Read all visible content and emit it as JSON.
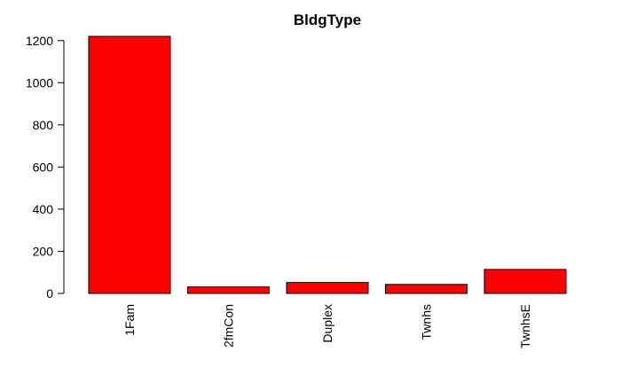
{
  "chart_data": {
    "type": "bar",
    "title": "BldgType",
    "xlabel": "",
    "ylabel": "",
    "categories": [
      "1Fam",
      "2fmCon",
      "Duplex",
      "Twnhs",
      "TwnhsE"
    ],
    "values": [
      1220,
      31,
      52,
      43,
      114
    ],
    "ylim": [
      0,
      1220
    ],
    "yticks": [
      0,
      200,
      400,
      600,
      800,
      1000,
      1200
    ],
    "bar_color": "#ff0000",
    "bar_border": "#000000",
    "grid": false,
    "legend": "none",
    "x_label_orientation": "vertical"
  }
}
